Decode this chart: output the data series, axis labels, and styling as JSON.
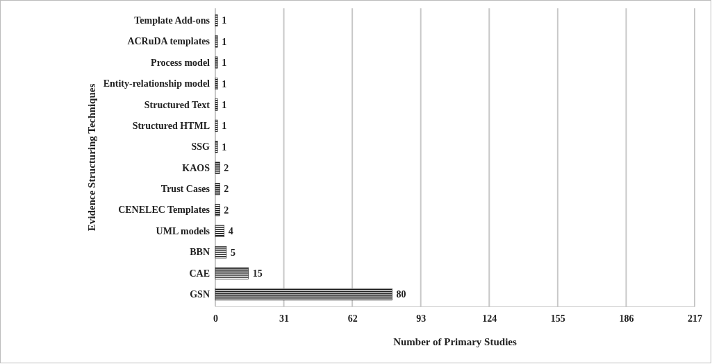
{
  "chart_data": {
    "type": "bar",
    "orientation": "horizontal",
    "xlabel": "Number of Primary Studies",
    "ylabel": "Evidence Structuring Techniques",
    "categories": [
      "Template Add-ons",
      "ACRuDA templates",
      "Process model",
      "Entity-relationship model",
      "Structured Text",
      "Structured HTML",
      "SSG",
      "KAOS",
      "Trust Cases",
      "CENELEC Templates",
      "UML models",
      "BBN",
      "CAE",
      "GSN"
    ],
    "values": [
      1,
      1,
      1,
      1,
      1,
      1,
      1,
      2,
      2,
      2,
      4,
      5,
      15,
      80
    ],
    "color": "#1a1a1a",
    "xlim": [
      0,
      217
    ],
    "xticks": [
      0,
      31,
      62,
      93,
      124,
      155,
      186,
      217
    ],
    "grid": "x",
    "data_labels": true
  }
}
